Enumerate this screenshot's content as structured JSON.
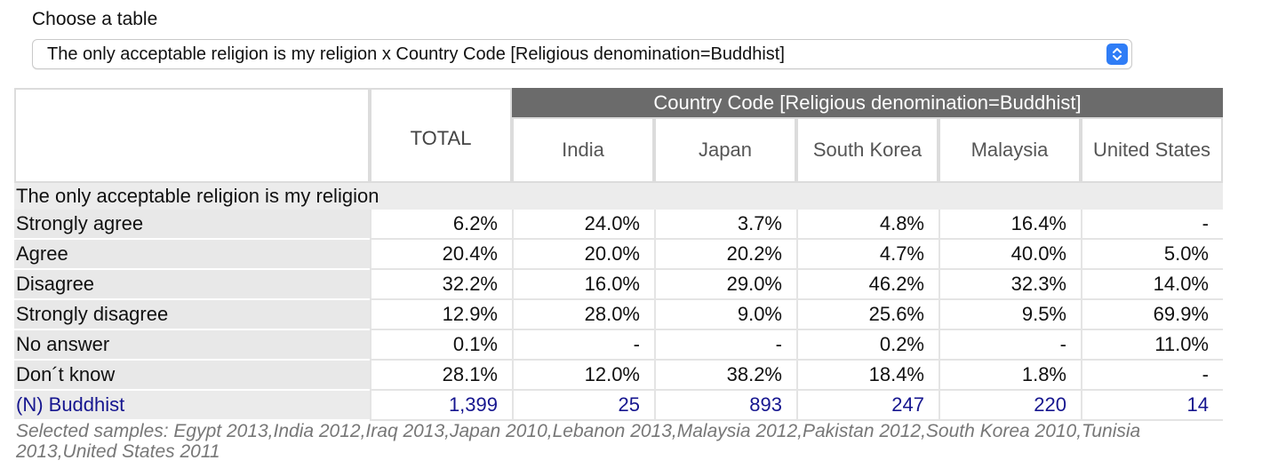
{
  "header": {
    "choose_label": "Choose a table",
    "selected_table": "The only acceptable religion is my religion x Country Code [Religious denomination=Buddhist]"
  },
  "table": {
    "total_header": "TOTAL",
    "group_header": "Country Code [Religious denomination=Buddhist]",
    "countries": [
      "India",
      "Japan",
      "South Korea",
      "Malaysia",
      "United States"
    ],
    "section_title": "The only acceptable religion is my religion",
    "rows": [
      {
        "label": "Strongly agree",
        "values": [
          "6.2%",
          "24.0%",
          "3.7%",
          "4.8%",
          "16.4%",
          "-"
        ]
      },
      {
        "label": "Agree",
        "values": [
          "20.4%",
          "20.0%",
          "20.2%",
          "4.7%",
          "40.0%",
          "5.0%"
        ]
      },
      {
        "label": "Disagree",
        "values": [
          "32.2%",
          "16.0%",
          "29.0%",
          "46.2%",
          "32.3%",
          "14.0%"
        ]
      },
      {
        "label": "Strongly disagree",
        "values": [
          "12.9%",
          "28.0%",
          "9.0%",
          "25.6%",
          "9.5%",
          "69.9%"
        ]
      },
      {
        "label": "No answer",
        "values": [
          "0.1%",
          "-",
          "-",
          "0.2%",
          "-",
          "11.0%"
        ]
      },
      {
        "label": "Don´t know",
        "values": [
          "28.1%",
          "12.0%",
          "38.2%",
          "18.4%",
          "1.8%",
          "-"
        ]
      }
    ],
    "n_row": {
      "label": "(N) Buddhist",
      "values": [
        "1,399",
        "25",
        "893",
        "247",
        "220",
        "14"
      ]
    }
  },
  "footnote": "Selected samples: Egypt 2013,India 2012,Iraq 2013,Japan 2010,Lebanon 2013,Malaysia 2012,Pakistan 2012,South Korea 2010,Tunisia 2013,United States 2011",
  "colors": {
    "select_accent": "#2f7df6",
    "group_header_bg": "#6b6b6b",
    "n_row_text": "#16168f"
  },
  "icons": {
    "select_arrows": "chevron-up-down-icon"
  }
}
